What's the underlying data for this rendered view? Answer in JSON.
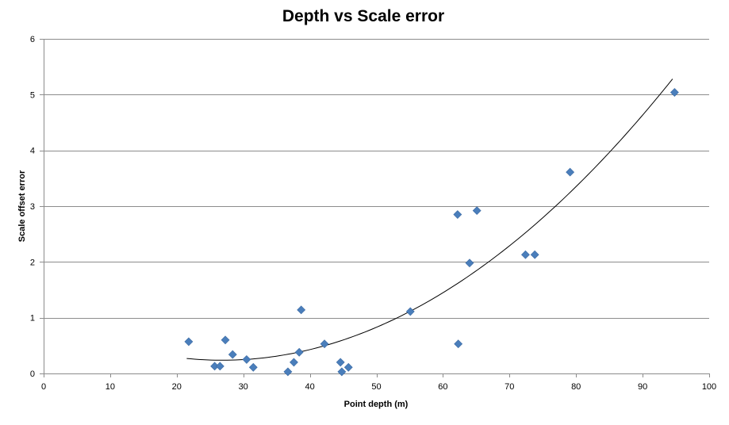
{
  "chart_data": {
    "type": "scatter",
    "title": "Depth vs Scale error",
    "xlabel": "Point depth (m)",
    "ylabel": "Scale offset error",
    "xlim": [
      0,
      100
    ],
    "ylim": [
      0,
      6
    ],
    "x_ticks": [
      0,
      10,
      20,
      30,
      40,
      50,
      60,
      70,
      80,
      90,
      100
    ],
    "y_ticks": [
      0,
      1,
      2,
      3,
      4,
      5,
      6
    ],
    "grid": "horizontal",
    "legend": "none",
    "marker_color": "#4a7ebb",
    "marker_shape": "diamond",
    "trendline": {
      "type": "polynomial",
      "degree": 2,
      "x_range": [
        21.5,
        94.5
      ],
      "color": "#000000",
      "points": [
        [
          22,
          0.27
        ],
        [
          27,
          0.25
        ],
        [
          32,
          0.27
        ],
        [
          38,
          0.37
        ],
        [
          45,
          0.58
        ],
        [
          55,
          1.06
        ],
        [
          65,
          1.85
        ],
        [
          75,
          2.86
        ],
        [
          85,
          3.97
        ],
        [
          94.5,
          5.25
        ]
      ]
    },
    "series": [
      {
        "points": [
          [
            21.8,
            0.57
          ],
          [
            25.7,
            0.13
          ],
          [
            26.5,
            0.13
          ],
          [
            27.3,
            0.6
          ],
          [
            28.4,
            0.34
          ],
          [
            30.5,
            0.25
          ],
          [
            31.5,
            0.11
          ],
          [
            36.7,
            0.03
          ],
          [
            37.6,
            0.2
          ],
          [
            38.4,
            0.38
          ],
          [
            38.7,
            1.14
          ],
          [
            42.2,
            0.53
          ],
          [
            44.6,
            0.2
          ],
          [
            44.8,
            0.03
          ],
          [
            45.8,
            0.11
          ],
          [
            55.1,
            1.11
          ],
          [
            62.2,
            2.85
          ],
          [
            62.3,
            0.53
          ],
          [
            64.0,
            1.98
          ],
          [
            65.1,
            2.92
          ],
          [
            72.4,
            2.13
          ],
          [
            73.8,
            2.13
          ],
          [
            79.1,
            3.61
          ],
          [
            94.8,
            5.04
          ]
        ]
      }
    ]
  }
}
